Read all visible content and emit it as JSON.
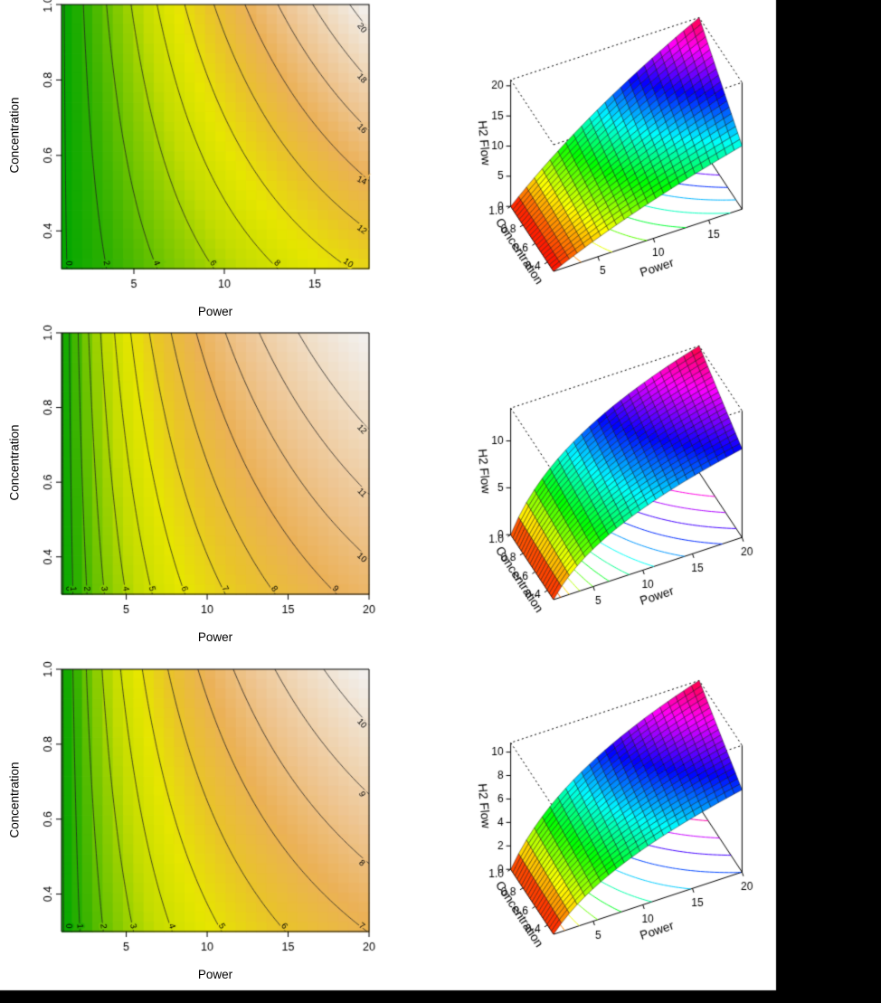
{
  "layout": {
    "background": "#000000",
    "panel": "#ffffff",
    "contour_line": "#222222",
    "box_color": "#000000"
  },
  "palettes": {
    "terrain": [
      "#00A600",
      "#32B100",
      "#7CC800",
      "#C3DC00",
      "#E6E600",
      "#E9C32A",
      "#EBB157",
      "#EEC591",
      "#F0DCC2",
      "#F2F2F2"
    ],
    "rainbow_hue_span": 345
  },
  "chart_data": [
    {
      "type": "heatmap",
      "subtype": "filled-contour",
      "xlabel": "Power",
      "ylabel": "Concentration",
      "x_range": [
        1,
        18
      ],
      "y_range": [
        0.3,
        1.0
      ],
      "x_ticks": [
        5,
        10,
        15
      ],
      "y_ticks": [
        0.4,
        0.6,
        0.8,
        1.0
      ],
      "contour_levels": [
        0,
        2,
        4,
        6,
        8,
        10,
        12,
        14,
        16,
        18,
        20
      ],
      "model": {
        "zscale": 21,
        "p0": 20,
        "a": 0.5,
        "b": 0.5
      },
      "palette": "terrain"
    },
    {
      "type": "heatmap",
      "subtype": "surface-3d",
      "zlabel": "H2 Flow",
      "xlabel": "Power",
      "ylabel": "Concentration",
      "x_range": [
        1,
        18
      ],
      "y_range": [
        0.3,
        1.0
      ],
      "z_range": [
        0,
        21
      ],
      "x_ticks": [
        5,
        10,
        15
      ],
      "y_ticks": [
        "1.0",
        "0.8",
        "0.6",
        "0.4"
      ],
      "z_ticks": [
        0,
        5,
        10,
        15,
        20
      ],
      "floor_levels": [
        2,
        4,
        6,
        8,
        10,
        12,
        14,
        16,
        18,
        20
      ],
      "model": {
        "zscale": 21,
        "p0": 20,
        "a": 0.5,
        "b": 0.5
      },
      "palette": "rainbow"
    },
    {
      "type": "heatmap",
      "subtype": "filled-contour",
      "xlabel": "Power",
      "ylabel": "Concentration",
      "x_range": [
        1,
        20
      ],
      "y_range": [
        0.3,
        1.0
      ],
      "x_ticks": [
        5,
        10,
        15,
        20
      ],
      "y_ticks": [
        0.4,
        0.6,
        0.8,
        1.0
      ],
      "contour_levels": [
        0,
        1,
        2,
        3,
        4,
        5,
        6,
        7,
        8,
        9,
        10,
        11,
        12
      ],
      "model": {
        "zscale": 13.5,
        "p0": 3,
        "a": 0.7,
        "b": 0.3
      },
      "palette": "terrain"
    },
    {
      "type": "heatmap",
      "subtype": "surface-3d",
      "zlabel": "H2 Flow",
      "xlabel": "Power",
      "ylabel": "Concentration",
      "x_range": [
        1,
        20
      ],
      "y_range": [
        0.3,
        1.0
      ],
      "z_range": [
        0,
        13.5
      ],
      "x_ticks": [
        5,
        10,
        15,
        20
      ],
      "y_ticks": [
        "1.0",
        "0.8",
        "0.6",
        "0.4"
      ],
      "z_ticks": [
        0,
        5,
        10
      ],
      "floor_levels": [
        1,
        2,
        3,
        4,
        5,
        6,
        7,
        8,
        9,
        10,
        11,
        12
      ],
      "model": {
        "zscale": 13.5,
        "p0": 3,
        "a": 0.7,
        "b": 0.3
      },
      "palette": "rainbow"
    },
    {
      "type": "heatmap",
      "subtype": "filled-contour",
      "xlabel": "Power",
      "ylabel": "Concentration",
      "x_range": [
        1,
        20
      ],
      "y_range": [
        0.3,
        1.0
      ],
      "x_ticks": [
        5,
        10,
        15,
        20
      ],
      "y_ticks": [
        0.4,
        0.6,
        0.8,
        1.0
      ],
      "contour_levels": [
        0,
        1,
        2,
        3,
        4,
        5,
        6,
        7,
        8,
        9,
        10
      ],
      "model": {
        "zscale": 10.8,
        "p0": 4,
        "a": 0.65,
        "b": 0.35
      },
      "palette": "terrain"
    },
    {
      "type": "heatmap",
      "subtype": "surface-3d",
      "zlabel": "H2 Flow",
      "xlabel": "Power",
      "ylabel": "Concentration",
      "x_range": [
        1,
        20
      ],
      "y_range": [
        0.3,
        1.0
      ],
      "z_range": [
        0,
        10.8
      ],
      "x_ticks": [
        5,
        10,
        15,
        20
      ],
      "y_ticks": [
        "1.0",
        "0.8",
        "0.6",
        "0.4"
      ],
      "z_ticks": [
        0,
        2,
        4,
        6,
        8,
        10
      ],
      "floor_levels": [
        1,
        2,
        3,
        4,
        5,
        6,
        7,
        8,
        9,
        10
      ],
      "model": {
        "zscale": 10.8,
        "p0": 4,
        "a": 0.65,
        "b": 0.35
      },
      "palette": "rainbow"
    }
  ]
}
